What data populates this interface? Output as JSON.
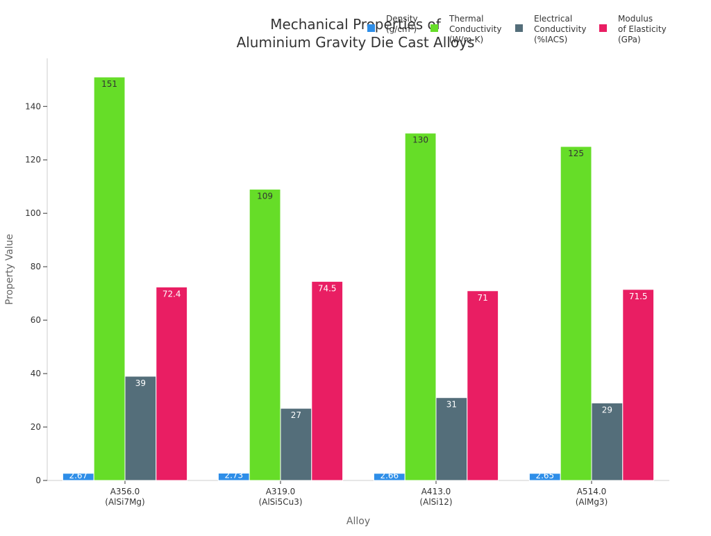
{
  "chart_data": {
    "type": "bar",
    "title_lines": [
      "Mechanical Properties of",
      "Aluminium Gravity Die Cast Alloys"
    ],
    "xlabel": "Alloy",
    "ylabel": "Property Value",
    "categories": [
      [
        "A356.0",
        "(AlSi7Mg)"
      ],
      [
        "A319.0",
        "(AlSi5Cu3)"
      ],
      [
        "A413.0",
        "(AlSi12)"
      ],
      [
        "A514.0",
        "(AlMg3)"
      ]
    ],
    "ylim": [
      0,
      158
    ],
    "yticks": [
      0,
      20,
      40,
      60,
      80,
      100,
      120,
      140
    ],
    "grid": false,
    "legend_position": "top-right",
    "series": [
      {
        "name_lines": [
          "Density",
          "(g/cm³)"
        ],
        "color": "#2E8EE8",
        "values": [
          2.67,
          2.73,
          2.66,
          2.65
        ],
        "labels": [
          "2.67",
          "2.73",
          "2.66",
          "2.65"
        ],
        "label_color": "#ffffff"
      },
      {
        "name_lines": [
          "Thermal",
          "Conductivity",
          "(W/m-K)"
        ],
        "color": "#66DD28",
        "values": [
          151,
          109,
          130,
          125
        ],
        "labels": [
          "151",
          "109",
          "130",
          "125"
        ],
        "label_color": "#333333"
      },
      {
        "name_lines": [
          "Electrical",
          "Conductivity",
          "(%IACS)"
        ],
        "color": "#546E7A",
        "values": [
          39,
          27,
          31,
          29
        ],
        "labels": [
          "39",
          "27",
          "31",
          "29"
        ],
        "label_color": "#ffffff"
      },
      {
        "name_lines": [
          "Modulus",
          "of Elasticity",
          "(GPa)"
        ],
        "color": "#E91E63",
        "values": [
          72.4,
          74.5,
          71,
          71.5
        ],
        "labels": [
          "72.4",
          "74.5",
          "71",
          "71.5"
        ],
        "label_color": "#ffffff"
      }
    ]
  }
}
